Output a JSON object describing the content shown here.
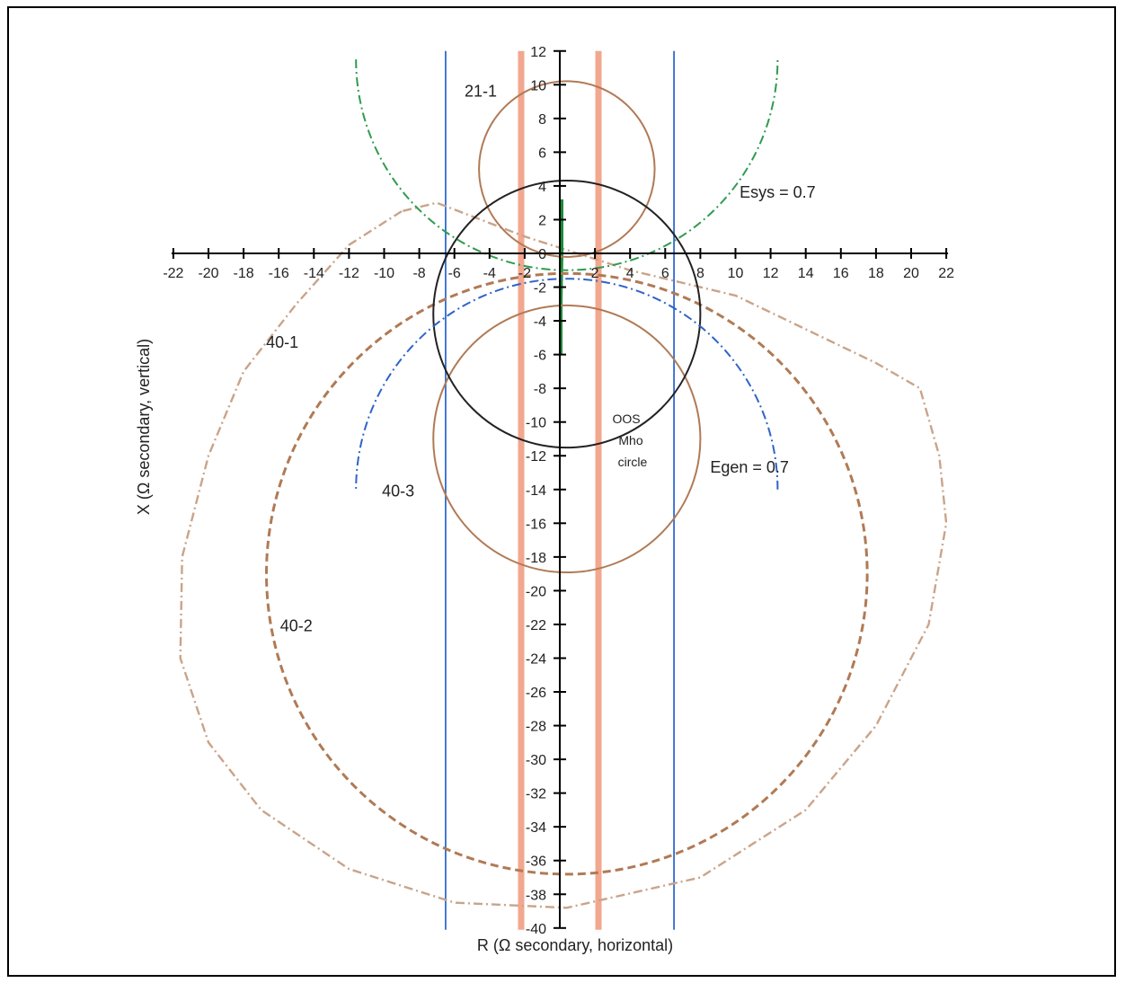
{
  "chart_data": {
    "type": "line",
    "title": "",
    "xlabel": "R  (Ω secondary, horizontal)",
    "ylabel": "X  (Ω secondary, vertical)",
    "xlim": [
      -22,
      22
    ],
    "ylim": [
      -40,
      12
    ],
    "x_ticks": [
      -22,
      -20,
      -18,
      -16,
      -14,
      -12,
      -10,
      -8,
      -6,
      -4,
      -2,
      0,
      2,
      4,
      6,
      8,
      10,
      12,
      14,
      16,
      18,
      20,
      22
    ],
    "x_tick_labels": [
      "-22",
      "-20",
      "-18",
      "-16",
      "-14",
      "-12",
      "-10",
      "-8",
      "-6",
      "-4",
      "-2",
      "0",
      "2",
      "4",
      "6",
      "8",
      "10",
      "12",
      "14",
      "16",
      "18",
      "20",
      "22"
    ],
    "y_ticks": [
      12,
      10,
      8,
      6,
      4,
      2,
      0,
      -2,
      -4,
      -6,
      -8,
      -10,
      -12,
      -14,
      -16,
      -18,
      -20,
      -22,
      -24,
      -26,
      -28,
      -30,
      -32,
      -34,
      -36,
      -38,
      -40
    ],
    "y_tick_labels": [
      "12",
      "10",
      "8",
      "6",
      "4",
      "2",
      "0",
      "-2",
      "-4",
      "-6",
      "-8",
      "-10",
      "-12",
      "-14",
      "-16",
      "-18",
      "-20",
      "-22",
      "-24",
      "-26",
      "-28",
      "-30",
      "-32",
      "-34",
      "-36",
      "-38",
      "-40"
    ],
    "circles": [
      {
        "id": "21-1",
        "center": [
          0.4,
          5.0
        ],
        "radius": 5.0,
        "color": "#b07a55",
        "style": "solid"
      },
      {
        "id": "40-3",
        "center": [
          0.4,
          -11.0
        ],
        "radius": 7.6,
        "color": "#b07a55",
        "style": "solid"
      },
      {
        "id": "40-2",
        "center": [
          0.4,
          -19.0
        ],
        "radius": 17.1,
        "color": "#b07a55",
        "style": "dashed"
      },
      {
        "id": "oos-mho",
        "center": [
          0.4,
          -3.6
        ],
        "radius": 7.6,
        "color": "#222222",
        "style": "solid"
      }
    ],
    "arcs": [
      {
        "id": "esys",
        "center": [
          0.4,
          11.5
        ],
        "radius": 12.0,
        "from_deg": 180,
        "to_deg": 360,
        "color": "#2e9b4e",
        "style": "dashdot"
      },
      {
        "id": "egen",
        "center": [
          0.4,
          -14.0
        ],
        "radius": 12.0,
        "from_deg": 0,
        "to_deg": 180,
        "color": "#2f63c9",
        "style": "dashdot"
      }
    ],
    "polylines": [
      {
        "id": "40-1",
        "color": "#c9a48a",
        "style": "dashdot",
        "points": [
          [
            -9,
            2.5
          ],
          [
            -12,
            0.5
          ],
          [
            -15,
            -3
          ],
          [
            -18,
            -7
          ],
          [
            -20,
            -12
          ],
          [
            -21.5,
            -18
          ],
          [
            -21.6,
            -24
          ],
          [
            -20,
            -29
          ],
          [
            -17,
            -33
          ],
          [
            -12,
            -36.5
          ],
          [
            -6,
            -38.5
          ],
          [
            0.4,
            -38.8
          ],
          [
            8,
            -37
          ],
          [
            14,
            -33
          ],
          [
            18,
            -28
          ],
          [
            21,
            -22
          ],
          [
            22,
            -16
          ],
          [
            21.6,
            -12
          ],
          [
            20.5,
            -8
          ],
          [
            18,
            -6.5
          ],
          [
            10,
            -2.5
          ],
          [
            4,
            -1
          ],
          [
            -2,
            1
          ],
          [
            -7,
            3
          ],
          [
            -9,
            2.5
          ]
        ]
      },
      {
        "id": "impedance-trajectory",
        "color": "#1c8a3a",
        "style": "solid",
        "points": [
          [
            0.1,
            3.2
          ],
          [
            0.1,
            0
          ],
          [
            0.05,
            -3
          ],
          [
            0.05,
            -6
          ]
        ]
      }
    ],
    "vertical_lines": [
      {
        "x": -6.5,
        "color": "#2f6bd1",
        "width": "thin"
      },
      {
        "x": 6.5,
        "color": "#2f6bd1",
        "width": "thin"
      },
      {
        "x": -2.2,
        "color": "#f2a78f",
        "width": "thick"
      },
      {
        "x": 2.2,
        "color": "#f2a78f",
        "width": "thick"
      }
    ],
    "annotations": [
      {
        "text": "21-1",
        "x": -4.5,
        "y": 9.3
      },
      {
        "text": "Esys = 0.7",
        "x": 12.4,
        "y": 3.3
      },
      {
        "text": "40-1",
        "x": -15.8,
        "y": -5.6
      },
      {
        "text": "40-3",
        "x": -9.2,
        "y": -14.4
      },
      {
        "text": "40-2",
        "x": -15.0,
        "y": -22.4
      },
      {
        "text": "Egen = 0.7",
        "x": 10.8,
        "y": -13.0
      }
    ],
    "oos_label": [
      "OOS",
      "Mho",
      "circle"
    ]
  }
}
